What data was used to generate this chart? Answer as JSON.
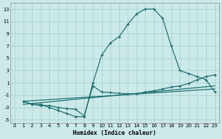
{
  "xlabel": "Humidex (Indice chaleur)",
  "bg_color": "#cce9e9",
  "grid_color": "#aad4d4",
  "line_color": "#1a6e6e",
  "xlim": [
    -0.5,
    23.5
  ],
  "ylim": [
    -5.5,
    14
  ],
  "xticks": [
    0,
    1,
    2,
    3,
    4,
    5,
    6,
    7,
    8,
    9,
    10,
    11,
    12,
    13,
    14,
    15,
    16,
    17,
    18,
    19,
    20,
    21,
    22,
    23
  ],
  "yticks": [
    -5,
    -3,
    -1,
    1,
    3,
    5,
    7,
    9,
    11,
    13
  ],
  "curve1_x": [
    1,
    2,
    3,
    4,
    5,
    6,
    7,
    8,
    9,
    10,
    11,
    12,
    13,
    14,
    15,
    16,
    17,
    18,
    19,
    20,
    21,
    22,
    23
  ],
  "curve1_y": [
    -2,
    -2.5,
    -2.5,
    -3,
    -3.5,
    -4,
    -4.5,
    -4.5,
    1.0,
    5.5,
    7.5,
    8.5,
    10.5,
    12.2,
    13.0,
    13.0,
    11.5,
    7.0,
    3.0,
    2.5,
    2.0,
    1.5,
    -0.5
  ],
  "curve2_x": [
    1,
    2,
    3,
    4,
    5,
    6,
    7,
    8,
    9,
    10,
    11,
    12,
    13,
    14,
    15,
    16,
    17,
    18,
    19,
    20,
    21,
    22,
    23
  ],
  "curve2_y": [
    -2,
    -2.5,
    -2.7,
    -2.7,
    -3,
    -3.2,
    -3.3,
    -4.4,
    0.5,
    -0.5,
    -0.6,
    -0.7,
    -0.8,
    -0.8,
    -0.5,
    -0.3,
    0.0,
    0.3,
    0.5,
    0.9,
    1.5,
    2.0,
    2.3
  ],
  "line1_x": [
    1,
    23
  ],
  "line1_y": [
    -2.0,
    0.0
  ],
  "line2_x": [
    1,
    23
  ],
  "line2_y": [
    -2.5,
    0.5
  ]
}
